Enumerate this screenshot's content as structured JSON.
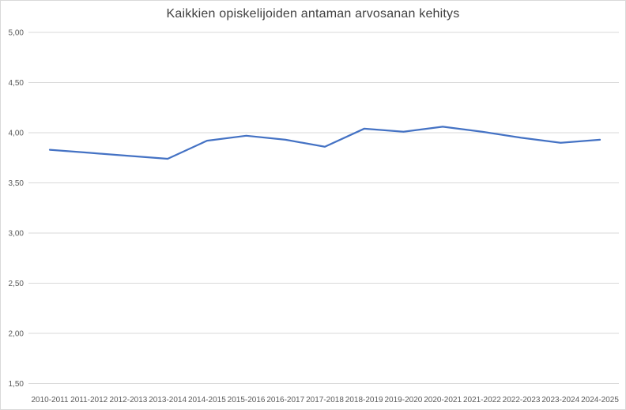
{
  "chart_data": {
    "type": "line",
    "title": "Kaikkien opiskelijoiden antaman arvosanan kehitys",
    "categories": [
      "2010-2011",
      "2011-2012",
      "2012-2013",
      "2013-2014",
      "2014-2015",
      "2015-2016",
      "2016-2017",
      "2017-2018",
      "2018-2019",
      "2019-2020",
      "2020-2021",
      "2021-2022",
      "2022-2023",
      "2023-2024",
      "2024-2025"
    ],
    "values": [
      3.83,
      3.8,
      3.77,
      3.74,
      3.92,
      3.97,
      3.93,
      3.86,
      4.04,
      4.01,
      4.06,
      4.01,
      3.95,
      3.9,
      3.93
    ],
    "xlabel": "",
    "ylabel": "",
    "ylim": [
      1.5,
      5.0
    ],
    "y_ticks": [
      {
        "v": 5.0,
        "label": "5,00"
      },
      {
        "v": 4.5,
        "label": "4,50"
      },
      {
        "v": 4.0,
        "label": "4,00"
      },
      {
        "v": 3.5,
        "label": "3,50"
      },
      {
        "v": 3.0,
        "label": "3,00"
      },
      {
        "v": 2.5,
        "label": "2,50"
      },
      {
        "v": 2.0,
        "label": "2,00"
      },
      {
        "v": 1.5,
        "label": "1,50"
      }
    ],
    "grid": true,
    "legend": "none",
    "colors": {
      "line": "#4472C4",
      "gridline": "#d9d9d9",
      "title_text": "#404040",
      "axis_text": "#595959",
      "background": "#ffffff",
      "border": "#d9d9d9"
    }
  }
}
